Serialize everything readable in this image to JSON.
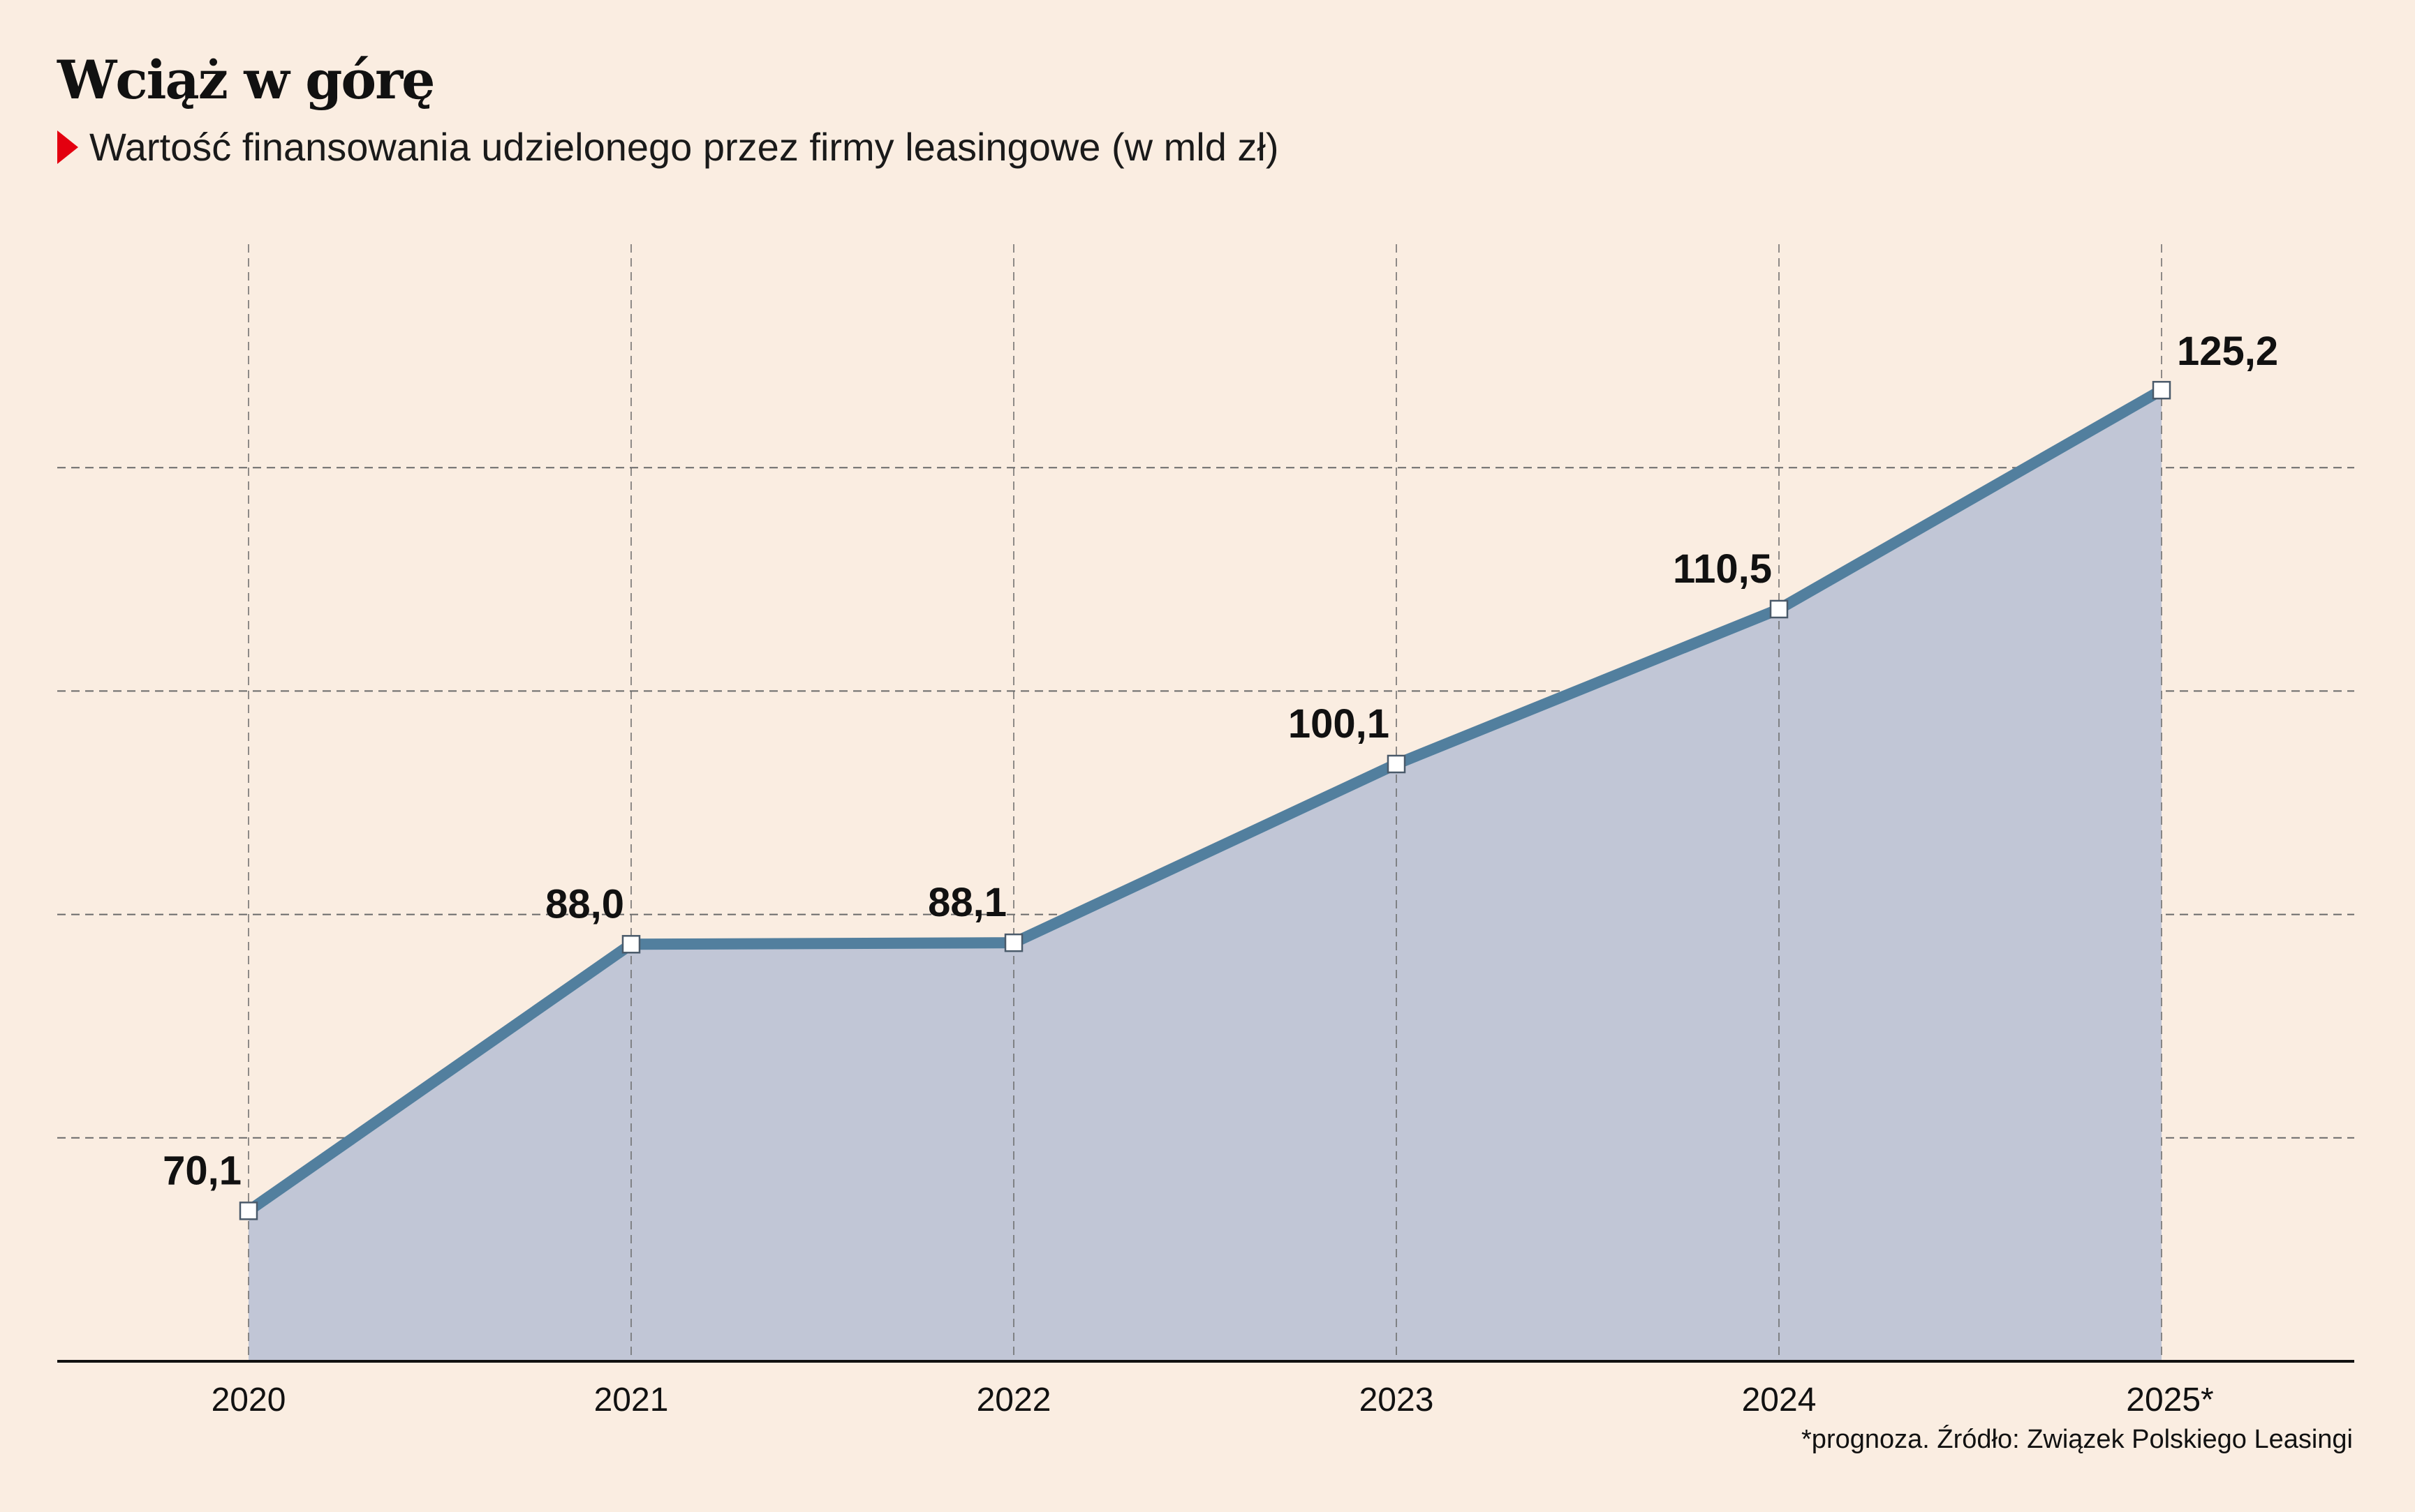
{
  "title": "Wciąż w górę",
  "subtitle": "Wartość finansowania udzielonego przez firmy leasingowe (w mld zł)",
  "source_note": "*prognoza. Źródło: Związek Polskiego Leasingi",
  "colors": {
    "background": "#faede1",
    "area_fill": "#c1c6d6",
    "line": "#527f9e",
    "grid": "#6a6a6a",
    "axis": "#111111",
    "marker_fill": "#ffffff",
    "subtitle_arrow": "#e3000f"
  },
  "chart_data": {
    "type": "area",
    "title": "Wciąż w górę",
    "subtitle": "Wartość finansowania udzielonego przez firmy leasingowe (w mld zł)",
    "categories": [
      "2020",
      "2021",
      "2022",
      "2023",
      "2024",
      "2025*"
    ],
    "series": [
      {
        "values": [
          70.1,
          88.0,
          88.1,
          100.1,
          110.5,
          125.2
        ],
        "labels": [
          "70,1",
          "88,0",
          "88,1",
          "100,1",
          "110,5",
          "125,2"
        ]
      }
    ],
    "ylim": [
      60,
      135
    ],
    "gridlines_y": [
      75,
      90,
      105,
      120
    ],
    "xlabel": "",
    "ylabel": "",
    "grid": true,
    "legend": "none"
  }
}
